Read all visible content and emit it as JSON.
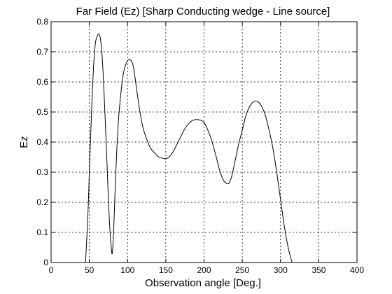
{
  "chart_data": {
    "type": "line",
    "title": "Far Field (Ez) [Sharp Conducting wedge - Line source]",
    "xlabel": "Observation angle [Deg.]",
    "ylabel": "Ez",
    "xlim": [
      0,
      400
    ],
    "ylim": [
      0,
      0.8
    ],
    "xticks": [
      "0",
      "50",
      "100",
      "150",
      "200",
      "250",
      "300",
      "350",
      "400"
    ],
    "yticks": [
      "0",
      "0.1",
      "0.2",
      "0.3",
      "0.4",
      "0.5",
      "0.6",
      "0.7",
      "0.8"
    ],
    "grid": true,
    "series": [
      {
        "color": "#000000",
        "x": [
          45,
          48,
          50,
          52,
          54,
          56,
          58,
          60,
          62,
          64,
          66,
          68,
          70,
          72,
          74,
          76,
          78,
          80,
          82,
          84,
          86,
          88,
          90,
          92,
          94,
          96,
          98,
          100,
          102,
          104,
          106,
          108,
          110,
          115,
          120,
          125,
          130,
          135,
          140,
          145,
          150,
          155,
          160,
          165,
          170,
          175,
          180,
          185,
          190,
          195,
          200,
          205,
          210,
          215,
          220,
          225,
          230,
          233,
          236,
          240,
          245,
          250,
          255,
          260,
          265,
          270,
          275,
          280,
          285,
          290,
          295,
          300,
          305,
          310,
          315
        ],
        "y": [
          0.0,
          0.15,
          0.3,
          0.44,
          0.57,
          0.67,
          0.73,
          0.75,
          0.76,
          0.75,
          0.71,
          0.63,
          0.52,
          0.4,
          0.27,
          0.15,
          0.07,
          0.03,
          0.12,
          0.26,
          0.38,
          0.47,
          0.53,
          0.58,
          0.62,
          0.645,
          0.66,
          0.67,
          0.675,
          0.672,
          0.665,
          0.645,
          0.61,
          0.52,
          0.45,
          0.41,
          0.38,
          0.365,
          0.352,
          0.347,
          0.345,
          0.352,
          0.37,
          0.395,
          0.42,
          0.445,
          0.462,
          0.472,
          0.475,
          0.473,
          0.465,
          0.44,
          0.405,
          0.36,
          0.31,
          0.275,
          0.262,
          0.265,
          0.285,
          0.33,
          0.39,
          0.44,
          0.49,
          0.52,
          0.535,
          0.535,
          0.52,
          0.49,
          0.44,
          0.38,
          0.3,
          0.21,
          0.12,
          0.05,
          0.0
        ]
      }
    ]
  }
}
